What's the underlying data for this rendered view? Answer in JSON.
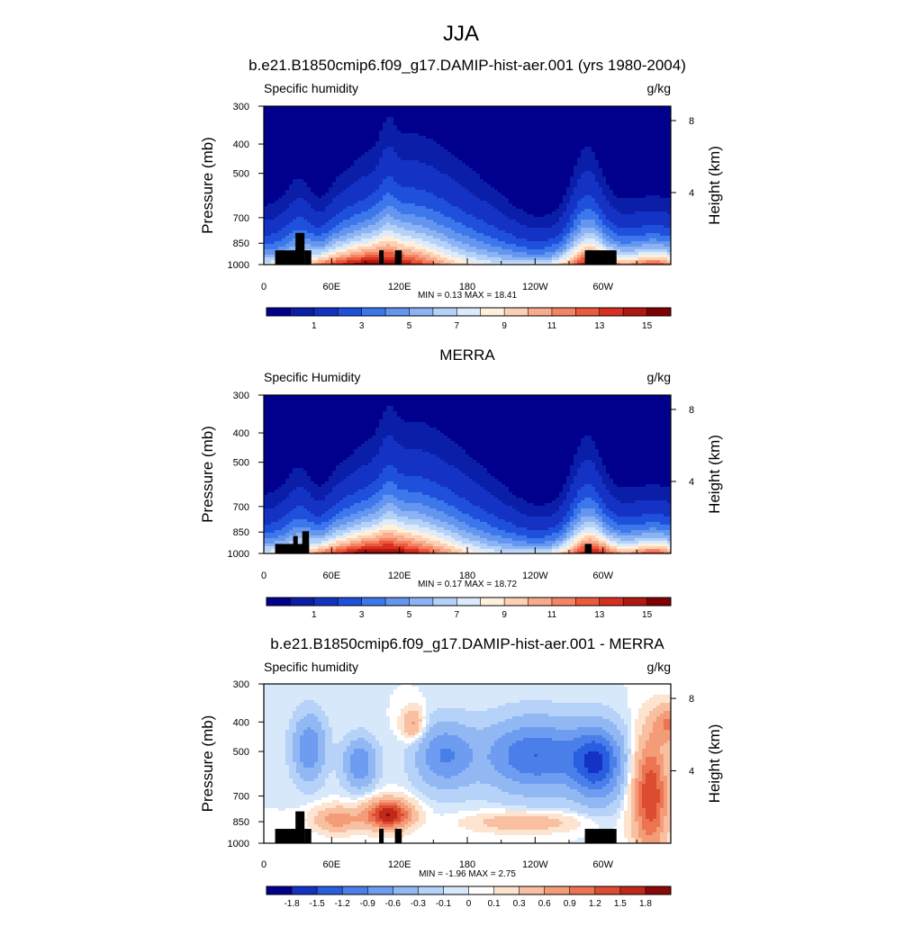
{
  "figure_title": "JJA",
  "colors": {
    "full_palette": [
      "#00008c",
      "#0a1ea8",
      "#1432c4",
      "#1e50dc",
      "#3c78ec",
      "#6496f0",
      "#8cb4f4",
      "#b4d2f8",
      "#dceafc",
      "#fff0dc",
      "#fcd0b4",
      "#f8ac8c",
      "#f48464",
      "#ec5a3c",
      "#d83020",
      "#b01810",
      "#800000"
    ],
    "diff_palette": [
      "#00008c",
      "#1432c4",
      "#2a5ee0",
      "#4a7fea",
      "#6e9cf0",
      "#92b8f4",
      "#b6d2f8",
      "#d8e8fb",
      "#ffffff",
      "#fde4d0",
      "#f8c0a0",
      "#f49c78",
      "#ec7452",
      "#dc4c30",
      "#c02818",
      "#8c0808"
    ],
    "terrain": "#000000"
  },
  "chart_data": [
    {
      "type": "heatmap",
      "title": "b.e21.B1850cmip6.f09_g17.DAMIP-hist-aer.001 (yrs 1980-2004)",
      "left_label": "Specific humidity",
      "units": "g/kg",
      "ylabel": "Pressure (mb)",
      "ylabel_right": "Height (km)",
      "y_ticks": [
        "300",
        "400",
        "500",
        "700",
        "850",
        "1000"
      ],
      "y_tick_values": [
        300,
        400,
        500,
        700,
        850,
        1000
      ],
      "right_ticks": [
        "8",
        "4"
      ],
      "right_tick_values": [
        8,
        4
      ],
      "x_ticks": [
        "0",
        "60E",
        "120E",
        "180",
        "120W",
        "60W"
      ],
      "x_tick_values": [
        0,
        60,
        120,
        180,
        240,
        300
      ],
      "xlim": [
        0,
        360
      ],
      "ylim": [
        1000,
        300
      ],
      "min_max": "MIN =   0.13  MAX =  18.41",
      "min": 0.13,
      "max": 18.41,
      "field": "model",
      "colorbar_labels": [
        "1",
        "3",
        "5",
        "7",
        "9",
        "11",
        "13",
        "15"
      ],
      "colorbar_values": [
        1,
        3,
        5,
        7,
        9,
        11,
        13,
        15
      ],
      "colorbar_levels": [
        0.5,
        1,
        2,
        3,
        4,
        5,
        6,
        7,
        8,
        9,
        10,
        11,
        12,
        13,
        14,
        15,
        16
      ]
    },
    {
      "type": "heatmap",
      "title": "MERRA",
      "left_label": "Specific Humidity",
      "units": "g/kg",
      "ylabel": "Pressure (mb)",
      "ylabel_right": "Height (km)",
      "y_ticks": [
        "300",
        "400",
        "500",
        "700",
        "850",
        "1000"
      ],
      "y_tick_values": [
        300,
        400,
        500,
        700,
        850,
        1000
      ],
      "right_ticks": [
        "8",
        "4"
      ],
      "right_tick_values": [
        8,
        4
      ],
      "x_ticks": [
        "0",
        "60E",
        "120E",
        "180",
        "120W",
        "60W"
      ],
      "x_tick_values": [
        0,
        60,
        120,
        180,
        240,
        300
      ],
      "xlim": [
        0,
        360
      ],
      "ylim": [
        1000,
        300
      ],
      "min_max": "MIN =   0.17  MAX =  18.72",
      "min": 0.17,
      "max": 18.72,
      "field": "obs",
      "colorbar_labels": [
        "1",
        "3",
        "5",
        "7",
        "9",
        "11",
        "13",
        "15"
      ],
      "colorbar_values": [
        1,
        3,
        5,
        7,
        9,
        11,
        13,
        15
      ],
      "colorbar_levels": [
        0.5,
        1,
        2,
        3,
        4,
        5,
        6,
        7,
        8,
        9,
        10,
        11,
        12,
        13,
        14,
        15,
        16
      ]
    },
    {
      "type": "heatmap",
      "title": "b.e21.B1850cmip6.f09_g17.DAMIP-hist-aer.001 - MERRA",
      "left_label": "Specific humidity",
      "units": "g/kg",
      "ylabel": "Pressure (mb)",
      "ylabel_right": "Height (km)",
      "y_ticks": [
        "300",
        "400",
        "500",
        "700",
        "850",
        "1000"
      ],
      "y_tick_values": [
        300,
        400,
        500,
        700,
        850,
        1000
      ],
      "right_ticks": [
        "8",
        "4"
      ],
      "right_tick_values": [
        8,
        4
      ],
      "x_ticks": [
        "0",
        "60E",
        "120E",
        "180",
        "120W",
        "60W"
      ],
      "x_tick_values": [
        0,
        60,
        120,
        180,
        240,
        300
      ],
      "xlim": [
        0,
        360
      ],
      "ylim": [
        1000,
        300
      ],
      "min_max": "MIN =  -1.96  MAX =   2.75",
      "min": -1.96,
      "max": 2.75,
      "field": "diff",
      "colorbar_labels": [
        "-1.8",
        "-1.5",
        "-1.2",
        "-0.9",
        "-0.6",
        "-0.3",
        "-0.1",
        "0",
        "0.1",
        "0.3",
        "0.6",
        "0.9",
        "1.2",
        "1.5",
        "1.8"
      ],
      "colorbar_values": [
        -1.8,
        -1.5,
        -1.2,
        -0.9,
        -0.6,
        -0.3,
        -0.1,
        0,
        0.1,
        0.3,
        0.6,
        0.9,
        1.2,
        1.5,
        1.8
      ],
      "colorbar_levels": [
        -1.8,
        -1.5,
        -1.2,
        -0.9,
        -0.6,
        -0.3,
        -0.1,
        0,
        0.1,
        0.3,
        0.6,
        0.9,
        1.2,
        1.5,
        1.8
      ]
    }
  ]
}
